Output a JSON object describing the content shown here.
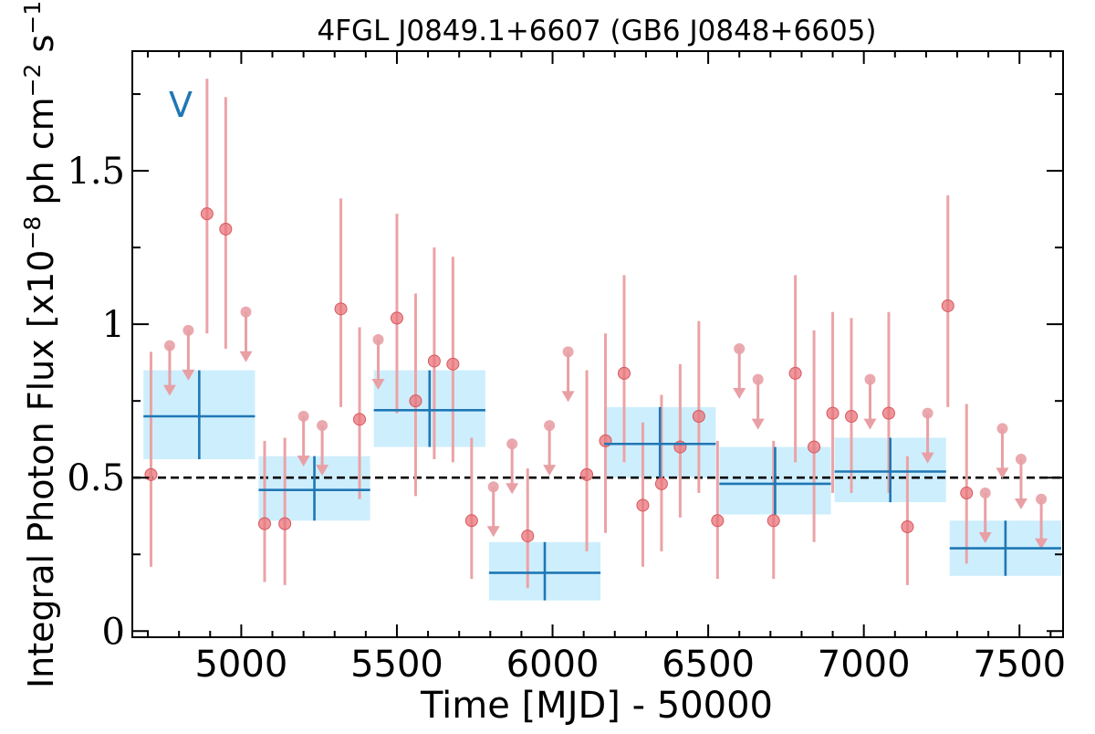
{
  "chart_data": {
    "type": "scatter",
    "title": "4FGL J0849.1+6607 (GB6 J0848+6605)",
    "xlabel": "Time [MJD] - 50000",
    "ylabel_main": "Integral Photon Flux [x10",
    "ylabel_exp1": "−8",
    "ylabel_mid": " ph cm",
    "ylabel_exp2": "−2",
    "ylabel_mid2": " s",
    "ylabel_exp3": "−1",
    "ylabel_end": "]",
    "annotation": "V",
    "xlim": [
      4650,
      7640
    ],
    "ylim": [
      -0.02,
      1.89
    ],
    "xticks": [
      5000,
      5500,
      6000,
      6500,
      7000,
      7500
    ],
    "xtick_labels": [
      "5000",
      "5500",
      "6000",
      "6500",
      "7000",
      "7500"
    ],
    "yticks": [
      0,
      0.5,
      1,
      1.5
    ],
    "ytick_labels": [
      "0",
      "0.5",
      "1",
      "1.5"
    ],
    "reference_line_y": 0.5,
    "colors": {
      "points": "#e8747a",
      "point_errbars": "#eba3a6",
      "upper_limits": "#e8a0a5",
      "binned": "#1f77b4",
      "binned_box": "#cdeefd",
      "annotation": "#1f77b4"
    },
    "points": [
      {
        "x": 4710,
        "y": 0.51,
        "lo": 0.21,
        "hi": 0.91
      },
      {
        "x": 4890,
        "y": 1.36,
        "lo": 0.97,
        "hi": 1.8
      },
      {
        "x": 4950,
        "y": 1.31,
        "lo": 0.92,
        "hi": 1.74
      },
      {
        "x": 5075,
        "y": 0.35,
        "lo": 0.16,
        "hi": 0.62
      },
      {
        "x": 5140,
        "y": 0.35,
        "lo": 0.15,
        "hi": 0.63
      },
      {
        "x": 5320,
        "y": 1.05,
        "lo": 0.73,
        "hi": 1.41
      },
      {
        "x": 5380,
        "y": 0.69,
        "lo": 0.43,
        "hi": 0.99
      },
      {
        "x": 5500,
        "y": 1.02,
        "lo": 0.71,
        "hi": 1.36
      },
      {
        "x": 5560,
        "y": 0.75,
        "lo": 0.44,
        "hi": 1.1
      },
      {
        "x": 5620,
        "y": 0.88,
        "lo": 0.56,
        "hi": 1.25
      },
      {
        "x": 5680,
        "y": 0.87,
        "lo": 0.55,
        "hi": 1.22
      },
      {
        "x": 5740,
        "y": 0.36,
        "lo": 0.17,
        "hi": 0.63
      },
      {
        "x": 5920,
        "y": 0.31,
        "lo": 0.14,
        "hi": 0.53
      },
      {
        "x": 6110,
        "y": 0.51,
        "lo": 0.26,
        "hi": 0.85
      },
      {
        "x": 6170,
        "y": 0.62,
        "lo": 0.32,
        "hi": 0.97
      },
      {
        "x": 6230,
        "y": 0.84,
        "lo": 0.55,
        "hi": 1.16
      },
      {
        "x": 6290,
        "y": 0.41,
        "lo": 0.21,
        "hi": 0.68
      },
      {
        "x": 6350,
        "y": 0.48,
        "lo": 0.26,
        "hi": 0.77
      },
      {
        "x": 6410,
        "y": 0.6,
        "lo": 0.37,
        "hi": 0.87
      },
      {
        "x": 6470,
        "y": 0.7,
        "lo": 0.45,
        "hi": 1.01
      },
      {
        "x": 6530,
        "y": 0.36,
        "lo": 0.17,
        "hi": 0.62
      },
      {
        "x": 6710,
        "y": 0.36,
        "lo": 0.17,
        "hi": 0.62
      },
      {
        "x": 6780,
        "y": 0.84,
        "lo": 0.55,
        "hi": 1.16
      },
      {
        "x": 6840,
        "y": 0.6,
        "lo": 0.29,
        "hi": 0.98
      },
      {
        "x": 6900,
        "y": 0.71,
        "lo": 0.45,
        "hi": 1.04
      },
      {
        "x": 6960,
        "y": 0.7,
        "lo": 0.45,
        "hi": 1.02
      },
      {
        "x": 7080,
        "y": 0.71,
        "lo": 0.45,
        "hi": 1.04
      },
      {
        "x": 7140,
        "y": 0.34,
        "lo": 0.15,
        "hi": 0.57
      },
      {
        "x": 7270,
        "y": 1.06,
        "lo": 0.73,
        "hi": 1.42
      },
      {
        "x": 7330,
        "y": 0.45,
        "lo": 0.22,
        "hi": 0.74
      }
    ],
    "upper_limits": [
      {
        "x": 4770,
        "y": 0.93
      },
      {
        "x": 4830,
        "y": 0.98
      },
      {
        "x": 5015,
        "y": 1.04
      },
      {
        "x": 5200,
        "y": 0.7
      },
      {
        "x": 5260,
        "y": 0.67
      },
      {
        "x": 5440,
        "y": 0.95
      },
      {
        "x": 5810,
        "y": 0.47
      },
      {
        "x": 5870,
        "y": 0.61
      },
      {
        "x": 5990,
        "y": 0.67
      },
      {
        "x": 6050,
        "y": 0.91
      },
      {
        "x": 6600,
        "y": 0.92
      },
      {
        "x": 6660,
        "y": 0.82
      },
      {
        "x": 7020,
        "y": 0.82
      },
      {
        "x": 7205,
        "y": 0.71
      },
      {
        "x": 7390,
        "y": 0.45
      },
      {
        "x": 7445,
        "y": 0.66
      },
      {
        "x": 7505,
        "y": 0.56
      },
      {
        "x": 7570,
        "y": 0.43
      }
    ],
    "binned": [
      {
        "x0": 4680,
        "x1": 5050,
        "y": 0.7,
        "lo": 0.56,
        "hi": 0.85
      },
      {
        "x0": 5050,
        "x1": 5420,
        "y": 0.46,
        "lo": 0.36,
        "hi": 0.57
      },
      {
        "x0": 5420,
        "x1": 5790,
        "y": 0.72,
        "lo": 0.6,
        "hi": 0.85
      },
      {
        "x0": 5790,
        "x1": 6160,
        "y": 0.19,
        "lo": 0.1,
        "hi": 0.29
      },
      {
        "x0": 6160,
        "x1": 6530,
        "y": 0.61,
        "lo": 0.5,
        "hi": 0.73
      },
      {
        "x0": 6530,
        "x1": 6900,
        "y": 0.48,
        "lo": 0.38,
        "hi": 0.6
      },
      {
        "x0": 6900,
        "x1": 7270,
        "y": 0.52,
        "lo": 0.42,
        "hi": 0.63
      },
      {
        "x0": 7270,
        "x1": 7640,
        "y": 0.27,
        "lo": 0.18,
        "hi": 0.36
      }
    ]
  }
}
